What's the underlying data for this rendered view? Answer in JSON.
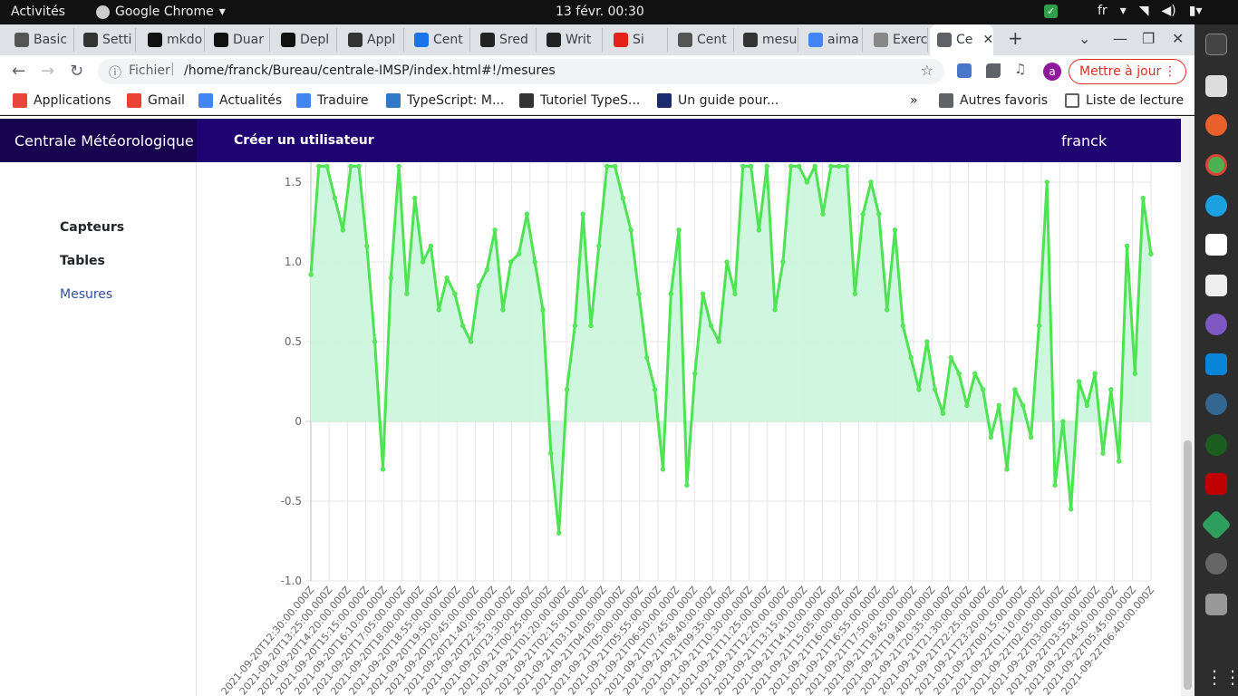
{
  "topbar": {
    "activities": "Activités",
    "app": "Google Chrome",
    "clock": "13 févr.  00:30",
    "lang": "fr"
  },
  "tabs": [
    {
      "label": "Basic",
      "icon_color": "#555"
    },
    {
      "label": "Setti",
      "icon_color": "#333"
    },
    {
      "label": "mkdo",
      "icon_color": "#111"
    },
    {
      "label": "Duar",
      "icon_color": "#111"
    },
    {
      "label": "Depl",
      "icon_color": "#111"
    },
    {
      "label": "Appl",
      "icon_color": "#333"
    },
    {
      "label": "Cent",
      "icon_color": "#1a73e8"
    },
    {
      "label": "Sred",
      "icon_color": "#222"
    },
    {
      "label": "Writ",
      "icon_color": "#222"
    },
    {
      "label": "Si",
      "icon_color": "#e62117"
    },
    {
      "label": "Cent",
      "icon_color": "#555"
    },
    {
      "label": "mesu",
      "icon_color": "#333"
    },
    {
      "label": "aima",
      "icon_color": "#4285f4"
    },
    {
      "label": "Exerc",
      "icon_color": "#888"
    },
    {
      "label": "Ce",
      "icon_color": "#5f6368"
    }
  ],
  "toolbar": {
    "scheme": "Fichier",
    "url": "/home/franck/Bureau/centrale-IMSP/index.html#!/mesures",
    "update_label": "Mettre à jour",
    "profile_initial": "a"
  },
  "bookmarks": {
    "items": [
      {
        "label": "Applications",
        "icon_color": "#e8453c"
      },
      {
        "label": "Gmail",
        "icon_color": "#ea4335"
      },
      {
        "label": "Actualités",
        "icon_color": "#4285f4"
      },
      {
        "label": "Traduire",
        "icon_color": "#4285f4"
      },
      {
        "label": "TypeScript: M...",
        "icon_color": "#3178c6"
      },
      {
        "label": "Tutoriel TypeS...",
        "icon_color": "#333"
      },
      {
        "label": "Un guide pour...",
        "icon_color": "#1c2b6b"
      }
    ],
    "more": "»",
    "other": "Autres favoris",
    "reading": "Liste de lecture"
  },
  "app": {
    "brand": "Centrale Météorologique",
    "create_user": "Créer un utilisateur",
    "user": "franck",
    "sidebar": [
      {
        "label": "Capteurs"
      },
      {
        "label": "Tables"
      },
      {
        "label": "Mesures"
      }
    ]
  },
  "chart_data": {
    "type": "area",
    "title": "",
    "xlabel": "",
    "ylabel": "",
    "ylim": [
      -1.0,
      1.6
    ],
    "yticks": [
      1.5,
      1.0,
      0.5,
      0,
      -0.5,
      -1.0
    ],
    "grid": true,
    "fill_color": "#ccf7dd",
    "line_color": "#4de352",
    "x_tick_labels": [
      "2021-09-20T12:30:00.000Z",
      "2021-09-20T13:25:00.000Z",
      "2021-09-20T14:20:00.000Z",
      "2021-09-20T15:15:00.000Z",
      "2021-09-20T16:10:00.000Z",
      "2021-09-20T17:05:00.000Z",
      "2021-09-20T18:00:00.000Z",
      "2021-09-20T18:55:00.000Z",
      "2021-09-20T19:50:00.000Z",
      "2021-09-20T20:45:00.000Z",
      "2021-09-20T21:40:00.000Z",
      "2021-09-20T22:35:00.000Z",
      "2021-09-20T23:30:00.000Z",
      "2021-09-21T00:25:00.000Z",
      "2021-09-21T01:20:00.000Z",
      "2021-09-21T02:15:00.000Z",
      "2021-09-21T03:10:00.000Z",
      "2021-09-21T04:05:00.000Z",
      "2021-09-21T05:00:00.000Z",
      "2021-09-21T05:55:00.000Z",
      "2021-09-21T06:50:00.000Z",
      "2021-09-21T07:45:00.000Z",
      "2021-09-21T08:40:00.000Z",
      "2021-09-21T09:35:00.000Z",
      "2021-09-21T10:30:00.000Z",
      "2021-09-21T11:25:00.000Z",
      "2021-09-21T12:20:00.000Z",
      "2021-09-21T13:15:00.000Z",
      "2021-09-21T14:10:00.000Z",
      "2021-09-21T15:05:00.000Z",
      "2021-09-21T16:00:00.000Z",
      "2021-09-21T16:55:00.000Z",
      "2021-09-21T17:50:00.000Z",
      "2021-09-21T18:45:00.000Z",
      "2021-09-21T19:40:00.000Z",
      "2021-09-21T20:35:00.000Z",
      "2021-09-21T21:30:00.000Z",
      "2021-09-21T22:25:00.000Z",
      "2021-09-21T23:20:00.000Z",
      "2021-09-22T00:15:00.000Z",
      "2021-09-22T01:10:00.000Z",
      "2021-09-22T02:05:00.000Z",
      "2021-09-22T03:00:00.000Z",
      "2021-09-22T03:55:00.000Z",
      "2021-09-22T04:50:00.000Z",
      "2021-09-22T05:45:00.000Z",
      "2021-09-22T06:40:00.000Z"
    ],
    "values": [
      0.92,
      1.6,
      1.6,
      1.4,
      1.2,
      1.6,
      1.6,
      1.1,
      0.5,
      -0.3,
      0.9,
      1.6,
      0.8,
      1.4,
      1.0,
      1.1,
      0.7,
      0.9,
      0.8,
      0.6,
      0.5,
      0.85,
      0.95,
      1.2,
      0.7,
      1.0,
      1.05,
      1.3,
      1.0,
      0.7,
      -0.2,
      -0.7,
      0.2,
      0.6,
      1.3,
      0.6,
      1.1,
      1.6,
      1.6,
      1.4,
      1.2,
      0.8,
      0.4,
      0.2,
      -0.3,
      0.8,
      1.2,
      -0.4,
      0.3,
      0.8,
      0.6,
      0.5,
      1.0,
      0.8,
      1.6,
      1.6,
      1.2,
      1.6,
      0.7,
      1.0,
      1.6,
      1.6,
      1.5,
      1.6,
      1.3,
      1.6,
      1.6,
      1.6,
      0.8,
      1.3,
      1.5,
      1.3,
      0.7,
      1.2,
      0.6,
      0.4,
      0.2,
      0.5,
      0.2,
      0.05,
      0.4,
      0.3,
      0.1,
      0.3,
      0.2,
      -0.1,
      0.1,
      -0.3,
      0.2,
      0.1,
      -0.1,
      0.6,
      1.5,
      -0.4,
      0.0,
      -0.55,
      0.25,
      0.1,
      0.3,
      -0.2,
      0.2,
      -0.25,
      1.1,
      0.3,
      1.4,
      1.05
    ]
  }
}
